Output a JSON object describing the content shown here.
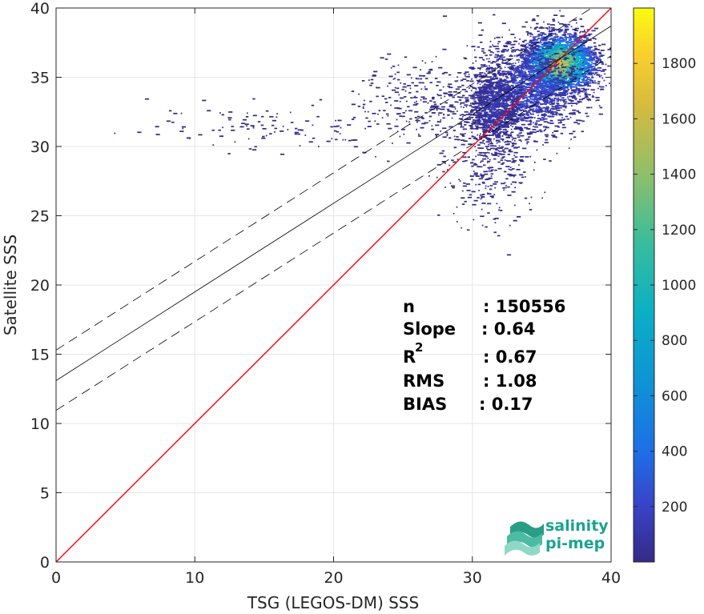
{
  "chart_data": {
    "type": "heatmap",
    "title": "",
    "xlabel": "TSG (LEGOS-DM) SSS",
    "ylabel": "Satellite SSS",
    "xlim": [
      0,
      40
    ],
    "ylim": [
      0,
      40
    ],
    "xticks": [
      "0",
      "10",
      "20",
      "30",
      "40"
    ],
    "yticks": [
      "0",
      "5",
      "10",
      "15",
      "20",
      "25",
      "30",
      "35",
      "40"
    ],
    "grid": true,
    "colorbar": {
      "range": [
        0,
        2000
      ],
      "ticks": [
        "200",
        "400",
        "600",
        "800",
        "1000",
        "1200",
        "1400",
        "1600",
        "1800"
      ],
      "colormap": "parula"
    },
    "lines": [
      {
        "name": "one-to-one",
        "slope": 1,
        "intercept": 0,
        "color": "#ff0000",
        "style": "solid"
      },
      {
        "name": "regression",
        "slope": 0.64,
        "intercept": 13.1,
        "color": "#000000",
        "style": "solid"
      },
      {
        "name": "upper-bound",
        "slope": 0.64,
        "intercept": 15.3,
        "color": "#000000",
        "style": "dashed"
      },
      {
        "name": "lower-bound",
        "slope": 0.64,
        "intercept": 10.95,
        "color": "#000000",
        "style": "dashed"
      }
    ],
    "density_clusters": [
      {
        "x": 36.2,
        "y": 36.0,
        "sx": 1.3,
        "sy": 1.1,
        "count": 2600,
        "peak": 1900
      },
      {
        "x": 34.0,
        "y": 34.3,
        "sx": 1.9,
        "sy": 1.7,
        "count": 1500,
        "peak": 350
      },
      {
        "x": 31.5,
        "y": 32.8,
        "sx": 1.0,
        "sy": 1.4,
        "count": 900,
        "peak": 180
      },
      {
        "x": 31.0,
        "y": 29.0,
        "sx": 1.6,
        "sy": 2.2,
        "count": 350,
        "peak": 40
      },
      {
        "x": 26.5,
        "y": 33.5,
        "sx": 2.5,
        "sy": 1.5,
        "count": 260,
        "peak": 20
      },
      {
        "x": 16.0,
        "y": 31.5,
        "sx": 4.5,
        "sy": 0.9,
        "count": 120,
        "peak": 10
      }
    ],
    "stats": [
      {
        "label": "n",
        "sup": "",
        "value": ": 150556"
      },
      {
        "label": "Slope",
        "sup": "",
        "value": ": 0.64"
      },
      {
        "label": "R",
        "sup": "2",
        "value": ": 0.67"
      },
      {
        "label": "RMS",
        "sup": "",
        "value": ": 1.08"
      },
      {
        "label": "BIAS",
        "sup": "",
        "value": ": 0.17"
      }
    ]
  },
  "logo": {
    "line1": "salinity",
    "line2": "pi-mep"
  }
}
